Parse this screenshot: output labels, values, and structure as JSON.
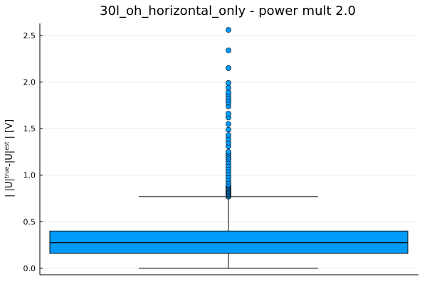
{
  "chart_data": {
    "type": "box",
    "title": "30l_oh_horizontal_only - power mult 2.0",
    "xlabel": "",
    "ylabel": "| |U|true-|U|est | [V]",
    "ylabel_parts": {
      "a": "| |U|",
      "b": "true",
      "c": "-|U|",
      "d": "est",
      "e": " | [V]"
    },
    "ylim": [
      -0.07,
      2.63
    ],
    "yticks": [
      0.0,
      0.5,
      1.0,
      1.5,
      2.0,
      2.5
    ],
    "ytick_labels": [
      "0.0",
      "0.5",
      "1.0",
      "1.5",
      "2.0",
      "2.5"
    ],
    "grid": true,
    "legend": "none",
    "box": {
      "whisker_low": 0.0,
      "q1": 0.16,
      "median": 0.275,
      "q3": 0.4,
      "whisker_high": 0.77
    },
    "outliers": [
      0.77,
      0.78,
      0.79,
      0.8,
      0.81,
      0.82,
      0.83,
      0.84,
      0.85,
      0.86,
      0.87,
      0.88,
      0.89,
      0.9,
      0.93,
      0.96,
      0.99,
      1.02,
      1.05,
      1.08,
      1.11,
      1.14,
      1.17,
      1.19,
      1.21,
      1.23,
      1.25,
      1.31,
      1.35,
      1.39,
      1.43,
      1.49,
      1.55,
      1.62,
      1.66,
      1.74,
      1.78,
      1.81,
      1.84,
      1.87,
      1.89,
      1.94,
      1.99,
      2.15,
      2.34,
      2.56
    ],
    "colors": {
      "box_fill": "#009af9",
      "line": "#000000",
      "grid": "#ececec"
    }
  }
}
